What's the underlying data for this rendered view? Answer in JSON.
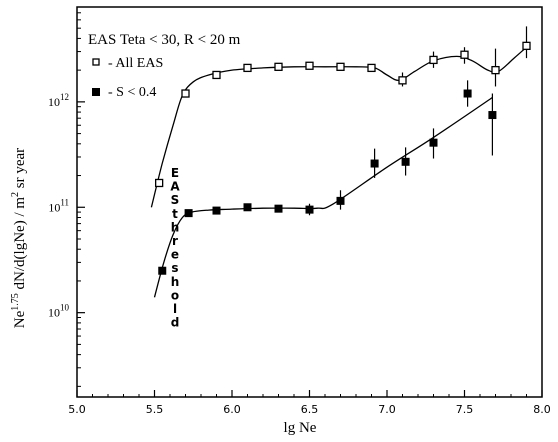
{
  "chart_data": {
    "type": "scatter",
    "title": "",
    "xlabel": "lg Ne",
    "ylabel_main": "Ne",
    "ylabel_sup1": "1.75",
    "ylabel_mid": " dN/d(lgNe) / m",
    "ylabel_sup2": "2",
    "ylabel_end": " sr  year",
    "xlim": [
      5.0,
      8.0
    ],
    "ylim_log10": [
      9.2,
      12.9
    ],
    "x_ticks": [
      5.0,
      5.5,
      6.0,
      6.5,
      7.0,
      7.5,
      8.0
    ],
    "x_tick_labels": [
      "5.0",
      "5.5",
      "6.0",
      "6.5",
      "7.0",
      "7.5",
      "8.0"
    ],
    "y_ticks_log10": [
      10,
      11,
      12
    ],
    "y_tick_labels": [
      {
        "base": "10",
        "exp": "10"
      },
      {
        "base": "10",
        "exp": "11"
      },
      {
        "base": "10",
        "exp": "12"
      }
    ],
    "grid": false,
    "legend_position": "top-left",
    "legend_title": "EAS    Teta < 30, R < 20 m",
    "annotation_vertical": "EAS threshold",
    "series": [
      {
        "name": "-  All EAS",
        "marker": "open-square",
        "color": "#000000",
        "x": [
          5.53,
          5.7,
          5.9,
          6.1,
          6.3,
          6.5,
          6.7,
          6.9,
          7.1,
          7.3,
          7.5,
          7.7,
          7.9
        ],
        "y": [
          170000000000.0,
          1200000000000.0,
          1800000000000.0,
          2100000000000.0,
          2150000000000.0,
          2200000000000.0,
          2150000000000.0,
          2100000000000.0,
          1600000000000.0,
          2500000000000.0,
          2800000000000.0,
          2000000000000.0,
          3400000000000.0
        ],
        "err_high": [
          null,
          null,
          null,
          null,
          null,
          null,
          null,
          null,
          1900000000000.0,
          3000000000000.0,
          3300000000000.0,
          3200000000000.0,
          5200000000000.0
        ],
        "err_low": [
          null,
          null,
          null,
          null,
          null,
          null,
          null,
          null,
          1400000000000.0,
          2100000000000.0,
          2300000000000.0,
          1400000000000.0,
          2600000000000.0
        ]
      },
      {
        "name": "-  S < 0.4",
        "marker": "filled-square",
        "color": "#000000",
        "x": [
          5.55,
          5.72,
          5.9,
          6.1,
          6.3,
          6.5,
          6.7,
          6.92,
          7.12,
          7.3,
          7.52,
          7.68
        ],
        "y": [
          25000000000.0,
          88000000000.0,
          93000000000.0,
          100000000000.0,
          97000000000.0,
          95000000000.0,
          115000000000.0,
          260000000000.0,
          270000000000.0,
          410000000000.0,
          1200000000000.0,
          750000000000.0
        ],
        "err_high": [
          null,
          null,
          null,
          null,
          null,
          108000000000.0,
          145000000000.0,
          360000000000.0,
          370000000000.0,
          560000000000.0,
          1600000000000.0,
          1200000000000.0
        ],
        "err_low": [
          null,
          null,
          null,
          null,
          null,
          84000000000.0,
          95000000000.0,
          190000000000.0,
          200000000000.0,
          290000000000.0,
          900000000000.0,
          310000000000.0
        ]
      }
    ],
    "fit_curves": [
      {
        "name": "All EAS curve",
        "x": [
          5.48,
          5.55,
          5.62,
          5.68,
          5.75,
          5.85,
          6.0,
          6.2,
          6.4,
          6.6,
          6.8,
          6.92,
          7.0,
          7.08,
          7.18,
          7.3,
          7.45,
          7.55,
          7.65,
          7.72,
          7.82,
          7.9
        ],
        "y": [
          100000000000.0,
          260000000000.0,
          600000000000.0,
          1150000000000.0,
          1550000000000.0,
          1800000000000.0,
          2000000000000.0,
          2100000000000.0,
          2150000000000.0,
          2150000000000.0,
          2150000000000.0,
          2100000000000.0,
          1800000000000.0,
          1600000000000.0,
          1950000000000.0,
          2450000000000.0,
          2700000000000.0,
          2450000000000.0,
          2000000000000.0,
          1950000000000.0,
          2600000000000.0,
          3300000000000.0
        ]
      },
      {
        "name": "S < 0.4 curve",
        "x": [
          5.5,
          5.56,
          5.62,
          5.68,
          5.74,
          5.85,
          6.0,
          6.2,
          6.4,
          6.55,
          6.65,
          7.0,
          7.3,
          7.68
        ],
        "y": [
          14000000000.0,
          30000000000.0,
          55000000000.0,
          80000000000.0,
          90000000000.0,
          94000000000.0,
          96000000000.0,
          98000000000.0,
          98000000000.0,
          98000000000.0,
          107000000000.0,
          240000000000.0,
          460000000000.0,
          1100000000000.0
        ]
      }
    ]
  }
}
